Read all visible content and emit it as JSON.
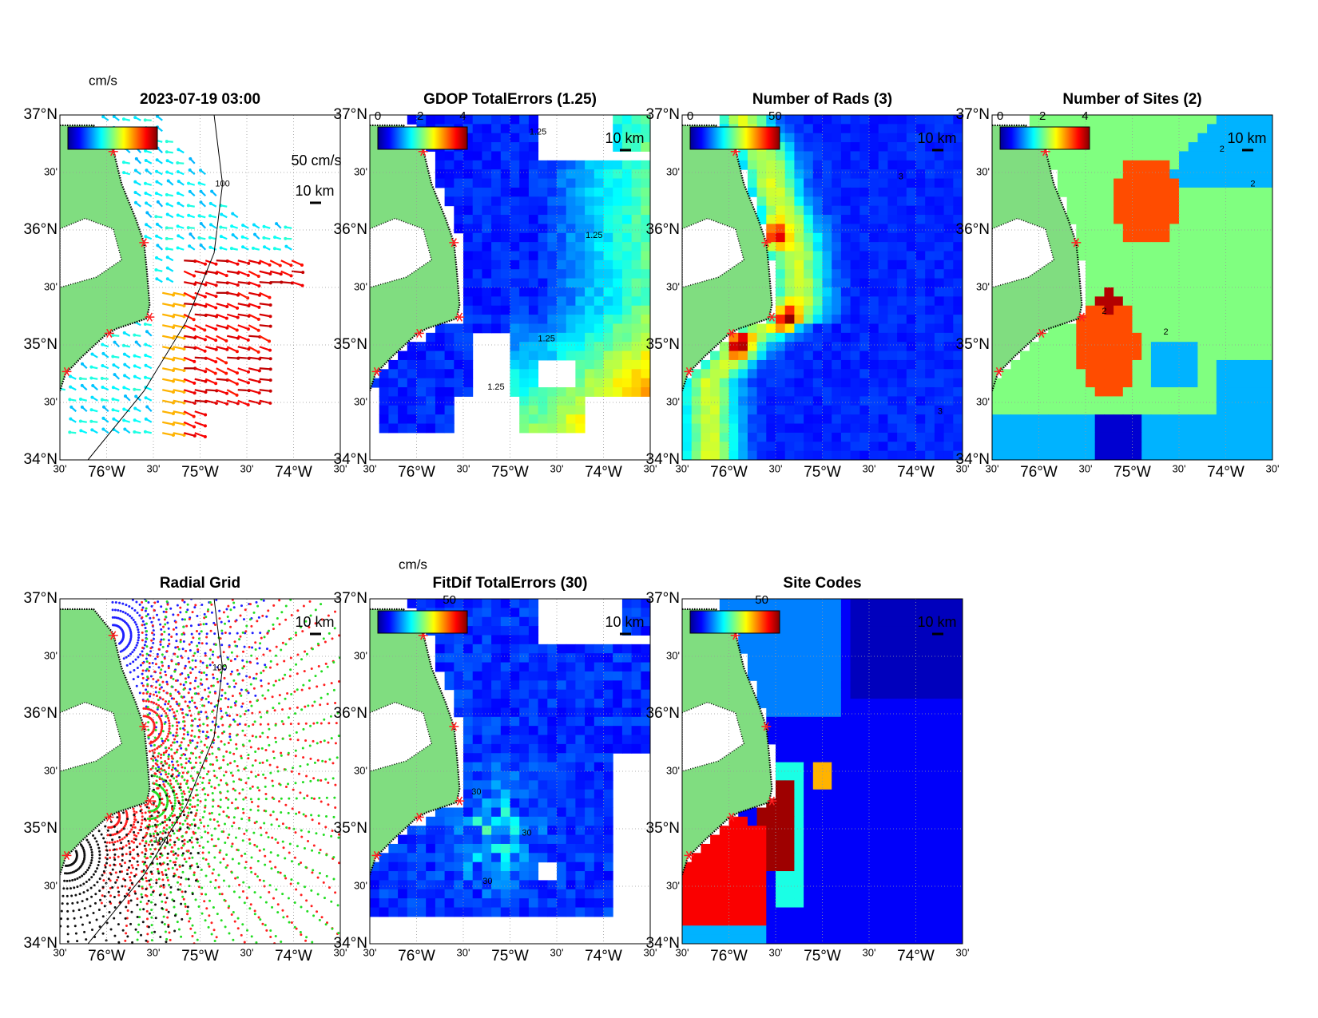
{
  "lat_labels": [
    "37°N",
    "30'",
    "36°N",
    "30'",
    "35°N",
    "30'",
    "34°N"
  ],
  "lon_labels": [
    "30'",
    "76°W",
    "30'",
    "75°W",
    "30'",
    "74°W",
    "30'"
  ],
  "panels": [
    {
      "title": "2023-07-19 03:00",
      "colorbar_unit": "cm/s",
      "vector_scale": "50 cm/s",
      "scale_bar": "10 km",
      "contour_labels": [
        "100"
      ]
    },
    {
      "title": "GDOP TotalErrors (1.25)",
      "colorbar_ticks": [
        0,
        2,
        4
      ],
      "scale_bar": "10 km",
      "contour_labels": [
        "1.25",
        "1.25",
        "1.25",
        "1.25"
      ]
    },
    {
      "title": "Number of Rads (3)",
      "colorbar_ticks": [
        0,
        50
      ],
      "scale_bar": "10 km",
      "contour_labels": [
        "3",
        "3"
      ]
    },
    {
      "title": "Number of Sites (2)",
      "colorbar_ticks": [
        0,
        2,
        4
      ],
      "scale_bar": "10 km",
      "contour_labels": [
        "2",
        "2",
        "2",
        "2"
      ]
    },
    {
      "title": "Radial Grid",
      "scale_bar": "10 km",
      "contour_labels": [
        "100",
        "100"
      ]
    },
    {
      "title": "FitDif TotalErrors (30)",
      "colorbar_unit": "cm/s",
      "colorbar_ticks": [
        50
      ],
      "scale_bar": "10 km",
      "contour_labels": [
        "30",
        "30",
        "30"
      ]
    },
    {
      "title": "Site Codes",
      "colorbar_ticks": [
        50
      ],
      "scale_bar": "10 km"
    }
  ]
}
